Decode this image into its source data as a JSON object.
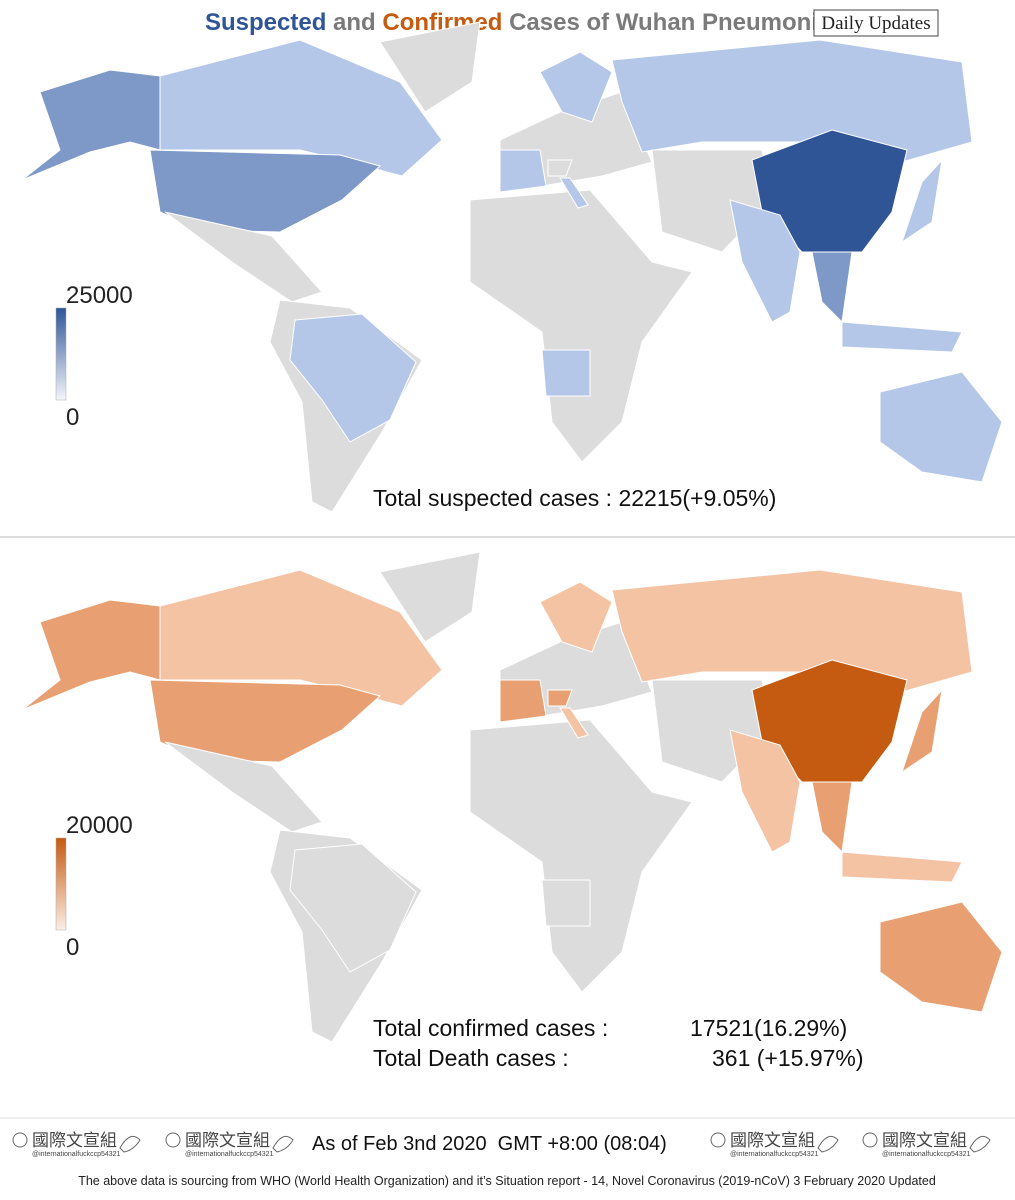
{
  "header": {
    "title_parts": [
      "Suspected",
      "and",
      "Confirmed",
      "Cases of Wuhan Pneumonia"
    ],
    "badge": "Daily Updates"
  },
  "maps": [
    {
      "legend_max": "25000",
      "legend_min": "0",
      "lines": [
        [
          "Total suspected cases : 22215(+9.05%)"
        ]
      ]
    },
    {
      "legend_max": "20000",
      "legend_min": "0",
      "lines": [
        [
          "Total confirmed cases :",
          "17521(16.29%)"
        ],
        [
          "Total Death cases :",
          "361 (+15.97%)"
        ]
      ]
    }
  ],
  "footer": {
    "watermark": "國際文宣組",
    "handle": "@internationalfuckccp54321",
    "timestamp": "As of Feb 3nd 2020  GMT +8:00 (08:04)",
    "source": "The above data is sourcing from WHO (World Health Organization) and it’s Situation report - 14, Novel Coronavirus (2019-nCoV) 3 February 2020 Updated"
  }
}
